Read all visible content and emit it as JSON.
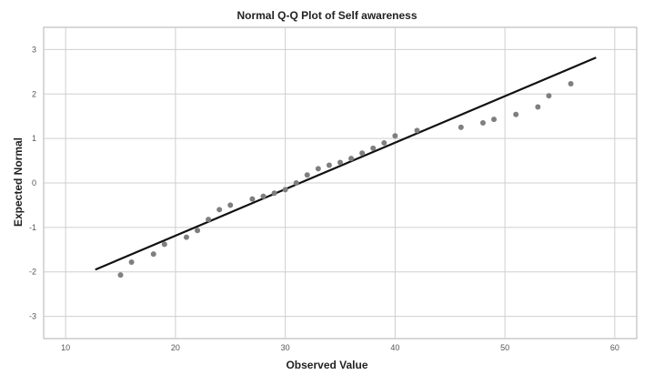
{
  "chart_data": {
    "type": "scatter",
    "title": "Normal Q-Q Plot of Self awareness",
    "xlabel": "Observed Value",
    "ylabel": "Expected Normal",
    "xlim": [
      8,
      62
    ],
    "ylim": [
      -3.5,
      3.5
    ],
    "x_ticks": [
      10,
      20,
      30,
      40,
      50,
      60
    ],
    "y_ticks": [
      3,
      2,
      1,
      0,
      -1,
      -2,
      -3
    ],
    "grid": true,
    "points": [
      [
        15,
        -2.07
      ],
      [
        16,
        -1.78
      ],
      [
        18,
        -1.6
      ],
      [
        19,
        -1.38
      ],
      [
        21,
        -1.22
      ],
      [
        22,
        -1.07
      ],
      [
        23,
        -0.82
      ],
      [
        24,
        -0.6
      ],
      [
        25,
        -0.5
      ],
      [
        27,
        -0.36
      ],
      [
        28,
        -0.3
      ],
      [
        29,
        -0.23
      ],
      [
        30,
        -0.15
      ],
      [
        31,
        0.0
      ],
      [
        32,
        0.18
      ],
      [
        33,
        0.32
      ],
      [
        34,
        0.4
      ],
      [
        35,
        0.46
      ],
      [
        36,
        0.55
      ],
      [
        37,
        0.67
      ],
      [
        38,
        0.78
      ],
      [
        39,
        0.9
      ],
      [
        40,
        1.06
      ],
      [
        42,
        1.18
      ],
      [
        46,
        1.25
      ],
      [
        48,
        1.35
      ],
      [
        49,
        1.43
      ],
      [
        51,
        1.54
      ],
      [
        53,
        1.71
      ],
      [
        54,
        1.96
      ],
      [
        56,
        2.23
      ]
    ],
    "reference_line": [
      [
        12.7,
        -1.95
      ],
      [
        58.3,
        2.82
      ]
    ]
  }
}
